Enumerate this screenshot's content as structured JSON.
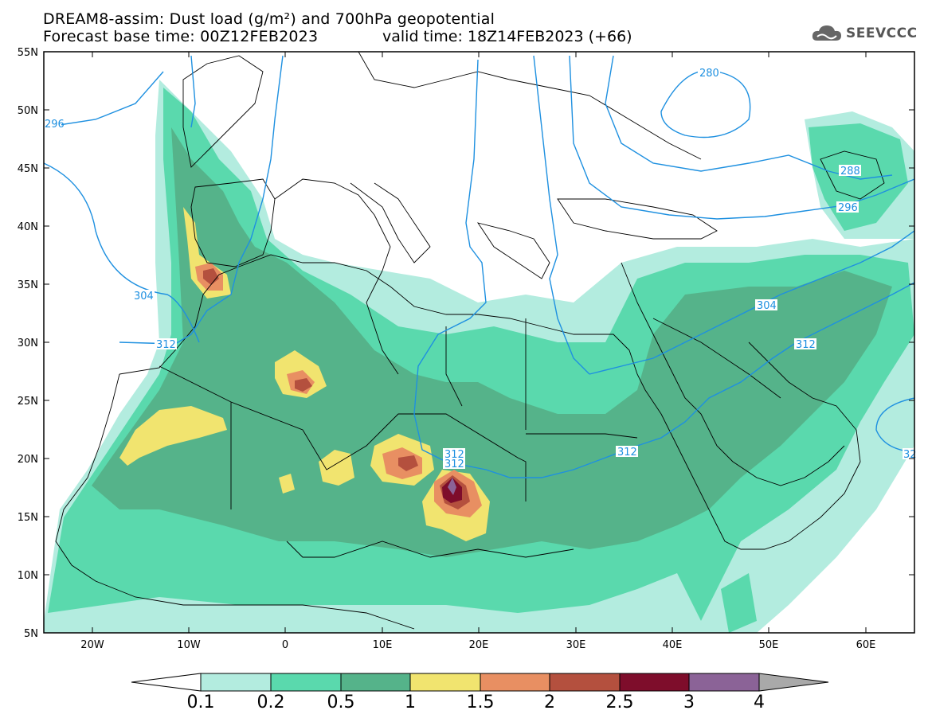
{
  "title": {
    "line1": "DREAM8-assim: Dust load (g/m²) and 700hPa geopotential",
    "base_time": "Forecast base time: 00Z12FEB2023",
    "valid_time": "valid time: 18Z14FEB2023 (+66)"
  },
  "logo": {
    "text": "SEEVCCC",
    "icon": "cloud-icon"
  },
  "axes": {
    "lat_labels": [
      "55N",
      "50N",
      "45N",
      "40N",
      "35N",
      "30N",
      "25N",
      "20N",
      "15N",
      "10N",
      "5N"
    ],
    "lon_labels": [
      "20W",
      "10W",
      "0",
      "10E",
      "20E",
      "30E",
      "40E",
      "50E",
      "60E"
    ],
    "lat_range": [
      5,
      55
    ],
    "lon_range": [
      -25,
      65
    ]
  },
  "contours": {
    "labels": [
      "280",
      "288",
      "296",
      "296",
      "304",
      "304",
      "312",
      "312",
      "312",
      "312",
      "312",
      "32"
    ],
    "color": "#1e90e0"
  },
  "colorbar": {
    "ticks": [
      "0.1",
      "0.2",
      "0.5",
      "1",
      "1.5",
      "2",
      "2.5",
      "3",
      "4"
    ],
    "colors": [
      "#ffffff",
      "#b3ecdf",
      "#5ad9ad",
      "#55b38a",
      "#f1e46f",
      "#e88f62",
      "#b4503e",
      "#7e0d2b",
      "#8b6397",
      "#a9a9a9"
    ]
  }
}
